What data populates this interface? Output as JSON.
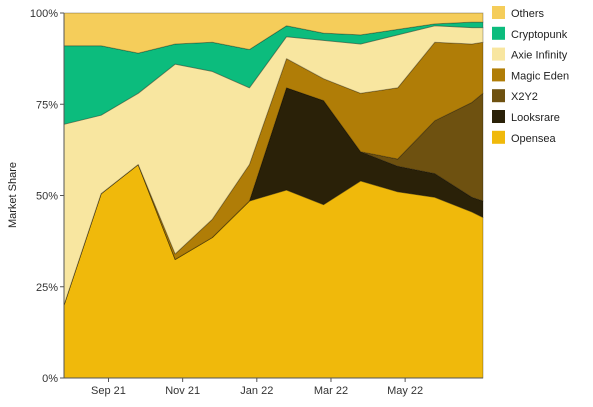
{
  "chart_data": {
    "type": "area",
    "stacked": true,
    "normalized": true,
    "title": "",
    "xlabel": "",
    "ylabel": "Market Share",
    "ylim": [
      0,
      100
    ],
    "y_ticks": [
      "0%",
      "25%",
      "50%",
      "75%",
      "100%"
    ],
    "x_tick_labels": [
      "Sep 21",
      "Nov 21",
      "Jan 22",
      "Mar 22",
      "May 22"
    ],
    "x_tick_positions": [
      1.2,
      3.2,
      5.2,
      7.2,
      9.2
    ],
    "x_range": [
      0,
      11.3
    ],
    "x": [
      0,
      1,
      2,
      3,
      4,
      5,
      6,
      7,
      8,
      9,
      10,
      11,
      11.3
    ],
    "legend_position": "right",
    "grid": false,
    "series": [
      {
        "name": "Opensea",
        "color": "#f0b90b",
        "values": [
          20,
          50.5,
          58.5,
          32.5,
          38.5,
          48.5,
          51.5,
          47.5,
          54,
          51,
          49.5,
          45.5,
          44
        ]
      },
      {
        "name": "Looksrare",
        "color": "#2a2108",
        "values": [
          0,
          0,
          0,
          0,
          0,
          0,
          28,
          28.5,
          8,
          7,
          6.5,
          4,
          4.5
        ]
      },
      {
        "name": "X2Y2",
        "color": "#6e5110",
        "values": [
          0,
          0,
          0,
          0,
          0,
          0,
          0,
          0,
          0,
          2,
          14.5,
          26,
          29.5
        ]
      },
      {
        "name": "Magic Eden",
        "color": "#b07d07",
        "values": [
          0,
          0,
          0,
          1.5,
          5,
          10,
          8,
          6,
          16,
          19.5,
          21.5,
          16,
          14
        ]
      },
      {
        "name": "Axie Infinity",
        "color": "#f8e6a0",
        "values": [
          49.5,
          21.5,
          19.5,
          52,
          40.5,
          21,
          6,
          10.5,
          13.5,
          14.5,
          4.5,
          4.5,
          4
        ]
      },
      {
        "name": "Cryptopunk",
        "color": "#0cbc7d",
        "values": [
          21.5,
          19,
          11,
          5.5,
          8,
          10.5,
          3,
          2,
          2.5,
          1.5,
          0.5,
          1.5,
          1.5
        ]
      },
      {
        "name": "Others",
        "color": "#f5cd5a",
        "values": [
          9,
          9,
          11,
          8.5,
          8,
          10,
          3.5,
          5.5,
          6,
          4.5,
          3,
          2.5,
          2.5
        ]
      }
    ]
  }
}
